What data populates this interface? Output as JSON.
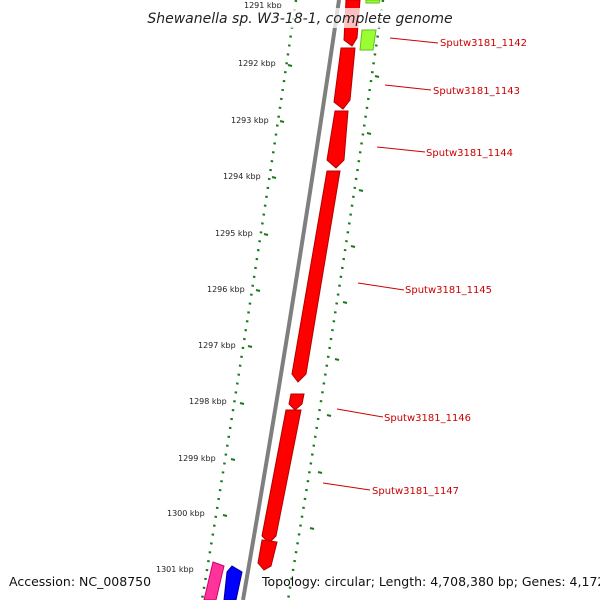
{
  "title": "Shewanella sp. W3-18-1, complete genome",
  "footer": {
    "accession": "Accession: NC_008750",
    "summary": "Topology: circular; Length: 4,708,380 bp; Genes: 4,172"
  },
  "ticks": [
    "1291 kbp",
    "1292 kbp",
    "1293 kbp",
    "1294 kbp",
    "1295 kbp",
    "1296 kbp",
    "1297 kbp",
    "1298 kbp",
    "1299 kbp",
    "1300 kbp",
    "1301 kbp"
  ],
  "genes": [
    {
      "label": "Sputw3181_1142",
      "color": "#ff0000"
    },
    {
      "label": "Sputw3181_1143",
      "color": "#ff0000"
    },
    {
      "label": "Sputw3181_1144",
      "color": "#ff0000"
    },
    {
      "label": "Sputw3181_1145",
      "color": "#ff0000"
    },
    {
      "label": "Sputw3181_1146",
      "color": "#ff0000"
    },
    {
      "label": "Sputw3181_1147",
      "color": "#ff0000"
    }
  ],
  "other_features": [
    {
      "name": "green-feature",
      "color": "#99ff33"
    },
    {
      "name": "magenta-feature",
      "color": "#ff3399"
    },
    {
      "name": "blue-feature",
      "color": "#0000ff"
    }
  ],
  "colors": {
    "backbone": "#888888",
    "tick_marks": "#1a7a1a",
    "gene_label": "#cc0000"
  }
}
